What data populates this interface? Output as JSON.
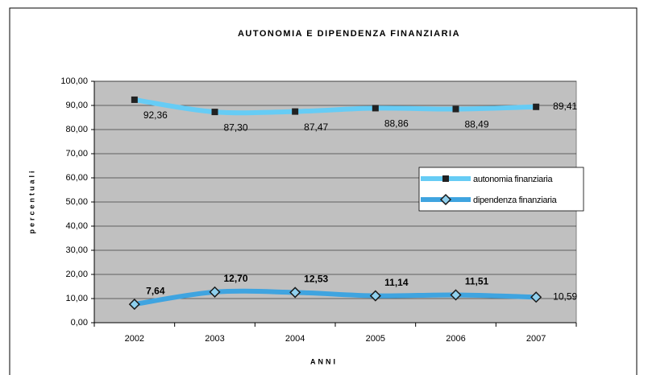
{
  "chart_data": {
    "type": "line",
    "title": "AUTONOMIA E DIPENDENZA FINANZIARIA",
    "xlabel": "ANNI",
    "ylabel": "percentuali",
    "categories": [
      "2002",
      "2003",
      "2004",
      "2005",
      "2006",
      "2007"
    ],
    "series": [
      {
        "name": "autonomia finanziaria",
        "color": "#66ccf5",
        "marker": "square",
        "values": [
          92.36,
          87.3,
          87.47,
          88.86,
          88.49,
          89.41
        ],
        "value_labels": [
          "92,36",
          "87,30",
          "87,47",
          "88,86",
          "88,49",
          "89,41"
        ]
      },
      {
        "name": "dipendenza finanziaria",
        "color": "#3fa4e0",
        "marker": "diamond",
        "values": [
          7.64,
          12.7,
          12.53,
          11.14,
          11.51,
          10.59
        ],
        "value_labels": [
          "7,64",
          "12,70",
          "12,53",
          "11,14",
          "11,51",
          "10,59"
        ]
      }
    ],
    "ylim": [
      0,
      100
    ],
    "yticks": [
      {
        "value": 0,
        "label": "0,00"
      },
      {
        "value": 10,
        "label": "10,00"
      },
      {
        "value": 20,
        "label": "20,00"
      },
      {
        "value": 30,
        "label": "30,00"
      },
      {
        "value": 40,
        "label": "40,00"
      },
      {
        "value": 50,
        "label": "50,00"
      },
      {
        "value": 60,
        "label": "60,00"
      },
      {
        "value": 70,
        "label": "70,00"
      },
      {
        "value": 80,
        "label": "80,00"
      },
      {
        "value": 90,
        "label": "90,00"
      },
      {
        "value": 100,
        "label": "100,00"
      }
    ],
    "grid": true,
    "legend": "right",
    "plot_background": "#c0c0c0"
  }
}
